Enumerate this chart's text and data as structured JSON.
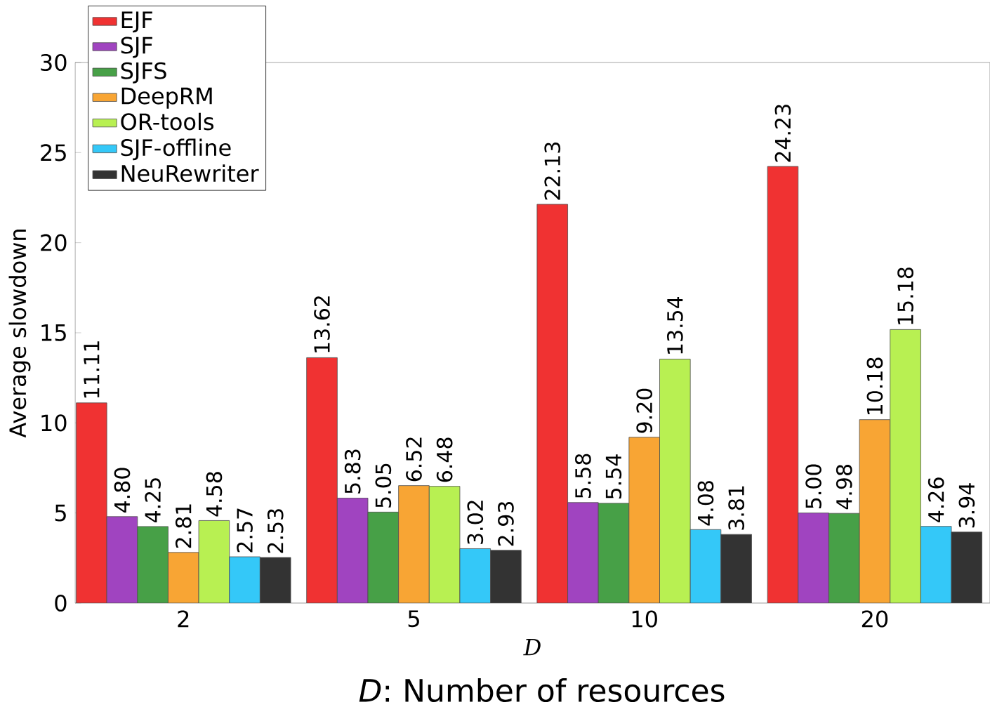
{
  "chart_data": {
    "type": "bar",
    "xlabel": "D",
    "ylabel": "Average slowdown",
    "categories": [
      "2",
      "5",
      "10",
      "20"
    ],
    "series": [
      {
        "name": "EJF",
        "color": "#f03232",
        "values": [
          11.11,
          13.62,
          22.13,
          24.23
        ],
        "value_labels": [
          "11.11",
          "13.62",
          "22.13",
          "24.23"
        ]
      },
      {
        "name": "SJF",
        "color": "#a044c0",
        "values": [
          4.8,
          5.83,
          5.58,
          5.0
        ],
        "value_labels": [
          "4.80",
          "5.83",
          "5.58",
          "5.00"
        ]
      },
      {
        "name": "SJFS",
        "color": "#47a047",
        "values": [
          4.25,
          5.05,
          5.54,
          4.98
        ],
        "value_labels": [
          "4.25",
          "5.05",
          "5.54",
          "4.98"
        ]
      },
      {
        "name": "DeepRM",
        "color": "#f8a534",
        "values": [
          2.81,
          6.52,
          9.2,
          10.18
        ],
        "value_labels": [
          "2.81",
          "6.52",
          "9.20",
          "10.18"
        ]
      },
      {
        "name": "OR-tools",
        "color": "#b8f052",
        "values": [
          4.58,
          6.48,
          13.54,
          15.18
        ],
        "value_labels": [
          "4.58",
          "6.48",
          "13.54",
          "15.18"
        ]
      },
      {
        "name": "SJF-offline",
        "color": "#34c8f8",
        "values": [
          2.57,
          3.02,
          4.08,
          4.26
        ],
        "value_labels": [
          "2.57",
          "3.02",
          "4.08",
          "4.26"
        ]
      },
      {
        "name": "NeuRewriter",
        "color": "#333333",
        "values": [
          2.53,
          2.93,
          3.81,
          3.94
        ],
        "value_labels": [
          "2.53",
          "2.93",
          "3.81",
          "3.94"
        ]
      }
    ],
    "ylim": [
      0,
      30
    ],
    "yticks": [
      0,
      5,
      10,
      15,
      20,
      25,
      30
    ],
    "legend": "top left",
    "grid": false,
    "annotations": [
      "*D*: Number of resources"
    ]
  }
}
